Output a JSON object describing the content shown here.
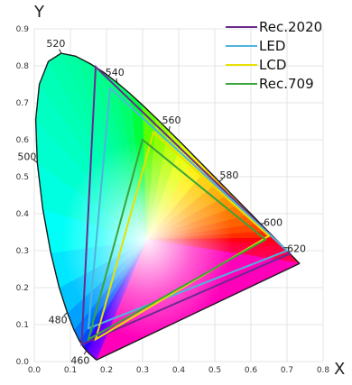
{
  "chart_data": {
    "type": "line",
    "title": "",
    "xlabel": "X",
    "ylabel": "Y",
    "xlim": [
      0.0,
      0.8
    ],
    "ylim": [
      0.0,
      0.9
    ],
    "grid": true,
    "legend_position": "top-right",
    "x_ticks": [
      "0.0",
      "0.1",
      "0.2",
      "0.3",
      "0.4",
      "0.5",
      "0.6",
      "0.7",
      "0.8"
    ],
    "y_ticks": [
      "0.0",
      "0.1",
      "0.2",
      "0.3",
      "0.4",
      "0.5",
      "0.6",
      "0.7",
      "0.8",
      "0.9"
    ],
    "spectral_locus": [
      [
        0.1741,
        0.005
      ],
      [
        0.1738,
        0.0049
      ],
      [
        0.1736,
        0.0049
      ],
      [
        0.1733,
        0.0048
      ],
      [
        0.173,
        0.0048
      ],
      [
        0.1726,
        0.0048
      ],
      [
        0.1721,
        0.0048
      ],
      [
        0.1714,
        0.0051
      ],
      [
        0.1703,
        0.0058
      ],
      [
        0.1689,
        0.0069
      ],
      [
        0.1669,
        0.0086
      ],
      [
        0.1644,
        0.0109
      ],
      [
        0.1611,
        0.0138
      ],
      [
        0.1566,
        0.0177
      ],
      [
        0.151,
        0.0227
      ],
      [
        0.144,
        0.0297
      ],
      [
        0.1355,
        0.0399
      ],
      [
        0.1241,
        0.0578
      ],
      [
        0.1096,
        0.0868
      ],
      [
        0.0913,
        0.1327
      ],
      [
        0.0687,
        0.2007
      ],
      [
        0.0454,
        0.295
      ],
      [
        0.0235,
        0.4127
      ],
      [
        0.0082,
        0.5384
      ],
      [
        0.0039,
        0.6548
      ],
      [
        0.0139,
        0.7502
      ],
      [
        0.0389,
        0.812
      ],
      [
        0.0743,
        0.8338
      ],
      [
        0.1142,
        0.8262
      ],
      [
        0.1547,
        0.8059
      ],
      [
        0.1929,
        0.7816
      ],
      [
        0.2296,
        0.7543
      ],
      [
        0.2658,
        0.7243
      ],
      [
        0.3016,
        0.6923
      ],
      [
        0.3373,
        0.6589
      ],
      [
        0.3731,
        0.6245
      ],
      [
        0.4087,
        0.5896
      ],
      [
        0.4441,
        0.5547
      ],
      [
        0.4788,
        0.5202
      ],
      [
        0.5125,
        0.4866
      ],
      [
        0.5448,
        0.4544
      ],
      [
        0.5752,
        0.4242
      ],
      [
        0.6029,
        0.3965
      ],
      [
        0.627,
        0.3725
      ],
      [
        0.6482,
        0.3514
      ],
      [
        0.6658,
        0.334
      ],
      [
        0.6801,
        0.3197
      ],
      [
        0.6915,
        0.3083
      ],
      [
        0.7006,
        0.2993
      ],
      [
        0.7079,
        0.292
      ],
      [
        0.714,
        0.2859
      ],
      [
        0.719,
        0.2809
      ],
      [
        0.723,
        0.277
      ],
      [
        0.726,
        0.274
      ],
      [
        0.7283,
        0.2717
      ],
      [
        0.73,
        0.27
      ],
      [
        0.7311,
        0.2689
      ],
      [
        0.732,
        0.268
      ],
      [
        0.7327,
        0.2673
      ],
      [
        0.7334,
        0.2666
      ],
      [
        0.734,
        0.266
      ],
      [
        0.7344,
        0.2656
      ],
      [
        0.7346,
        0.2654
      ],
      [
        0.7347,
        0.2653
      ]
    ],
    "wavelength_labels": [
      {
        "label": "460",
        "x": 0.144,
        "y": 0.0297
      },
      {
        "label": "480",
        "x": 0.0913,
        "y": 0.1327
      },
      {
        "label": "500",
        "x": 0.0082,
        "y": 0.5384
      },
      {
        "label": "520",
        "x": 0.0743,
        "y": 0.8338
      },
      {
        "label": "540",
        "x": 0.2296,
        "y": 0.7543
      },
      {
        "label": "560",
        "x": 0.3731,
        "y": 0.6245
      },
      {
        "label": "580",
        "x": 0.5125,
        "y": 0.4866
      },
      {
        "label": "600",
        "x": 0.627,
        "y": 0.3725
      },
      {
        "label": "620",
        "x": 0.6915,
        "y": 0.3083
      }
    ],
    "series": [
      {
        "name": "Rec.2020",
        "color": "#6a2a8f",
        "points": [
          [
            0.708,
            0.292
          ],
          [
            0.17,
            0.797
          ],
          [
            0.131,
            0.046
          ]
        ]
      },
      {
        "name": "LED",
        "color": "#4fb4dc",
        "points": [
          [
            0.7,
            0.3
          ],
          [
            0.21,
            0.74
          ],
          [
            0.15,
            0.09
          ]
        ]
      },
      {
        "name": "LCD",
        "color": "#e8e000",
        "points": [
          [
            0.65,
            0.34
          ],
          [
            0.33,
            0.62
          ],
          [
            0.17,
            0.06
          ]
        ]
      },
      {
        "name": "Rec.709",
        "color": "#3aa43a",
        "points": [
          [
            0.64,
            0.33
          ],
          [
            0.3,
            0.6
          ],
          [
            0.15,
            0.06
          ]
        ]
      }
    ]
  }
}
